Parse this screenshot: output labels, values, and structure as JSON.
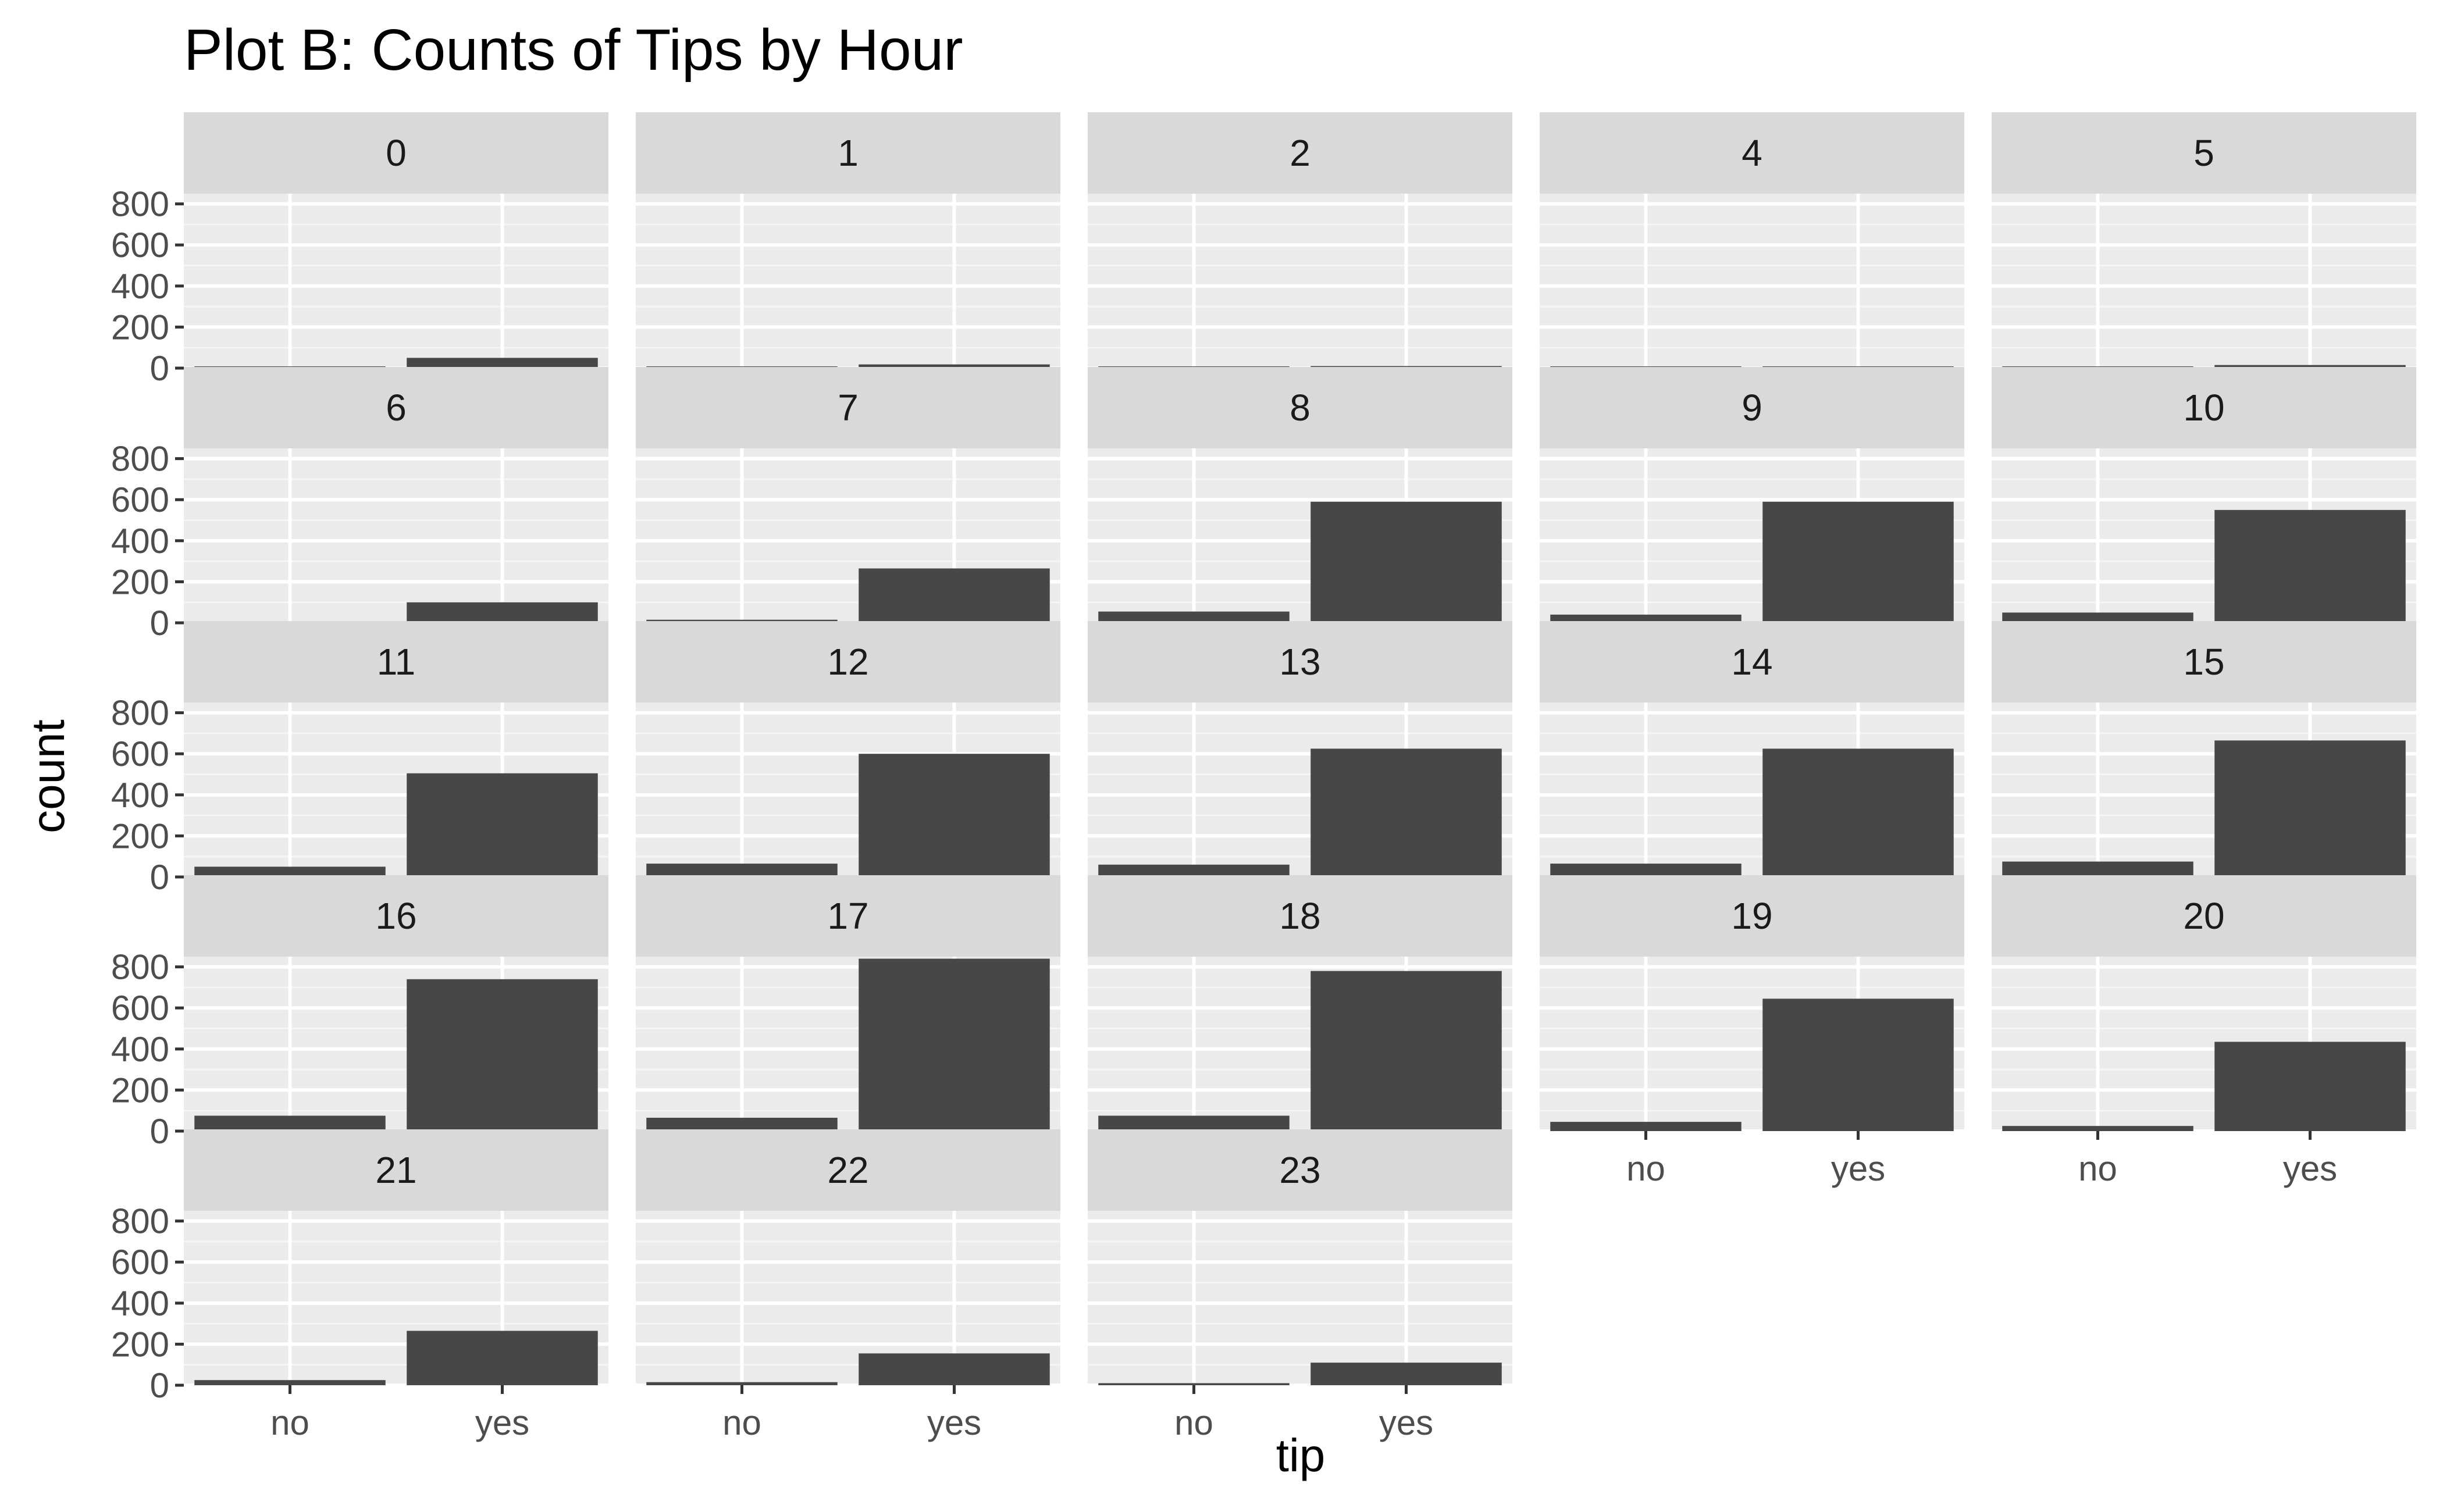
{
  "chart_data": {
    "type": "bar",
    "title": "Plot B: Counts of Tips by Hour",
    "xlabel": "tip",
    "ylabel": "count",
    "categories": [
      "no",
      "yes"
    ],
    "ylim": [
      0,
      850
    ],
    "y_ticks": [
      0,
      200,
      400,
      600,
      800
    ],
    "facet_by": "hour",
    "grid": true,
    "panels": [
      {
        "label": "0",
        "values": [
          8,
          50
        ]
      },
      {
        "label": "1",
        "values": [
          3,
          18
        ]
      },
      {
        "label": "2",
        "values": [
          2,
          10
        ]
      },
      {
        "label": "4",
        "values": [
          1,
          7
        ]
      },
      {
        "label": "5",
        "values": [
          2,
          15
        ]
      },
      {
        "label": "6",
        "values": [
          8,
          100
        ]
      },
      {
        "label": "7",
        "values": [
          15,
          265
        ]
      },
      {
        "label": "8",
        "values": [
          55,
          590
        ]
      },
      {
        "label": "9",
        "values": [
          40,
          590
        ]
      },
      {
        "label": "10",
        "values": [
          50,
          550
        ]
      },
      {
        "label": "11",
        "values": [
          50,
          505
        ]
      },
      {
        "label": "12",
        "values": [
          65,
          600
        ]
      },
      {
        "label": "13",
        "values": [
          60,
          625
        ]
      },
      {
        "label": "14",
        "values": [
          65,
          625
        ]
      },
      {
        "label": "15",
        "values": [
          75,
          665
        ]
      },
      {
        "label": "16",
        "values": [
          75,
          740
        ]
      },
      {
        "label": "17",
        "values": [
          65,
          840
        ]
      },
      {
        "label": "18",
        "values": [
          75,
          780
        ]
      },
      {
        "label": "19",
        "values": [
          45,
          645
        ]
      },
      {
        "label": "20",
        "values": [
          25,
          435
        ]
      },
      {
        "label": "21",
        "values": [
          25,
          265
        ]
      },
      {
        "label": "22",
        "values": [
          15,
          155
        ]
      },
      {
        "label": "23",
        "values": [
          10,
          110
        ]
      }
    ]
  },
  "colors": {
    "bar": "#474747",
    "panel_background": "#ebebeb",
    "strip_background": "#d9d9d9",
    "grid_major": "#ffffff",
    "grid_minor": "#f5f5f5",
    "tick_text": "#4d4d4d"
  }
}
